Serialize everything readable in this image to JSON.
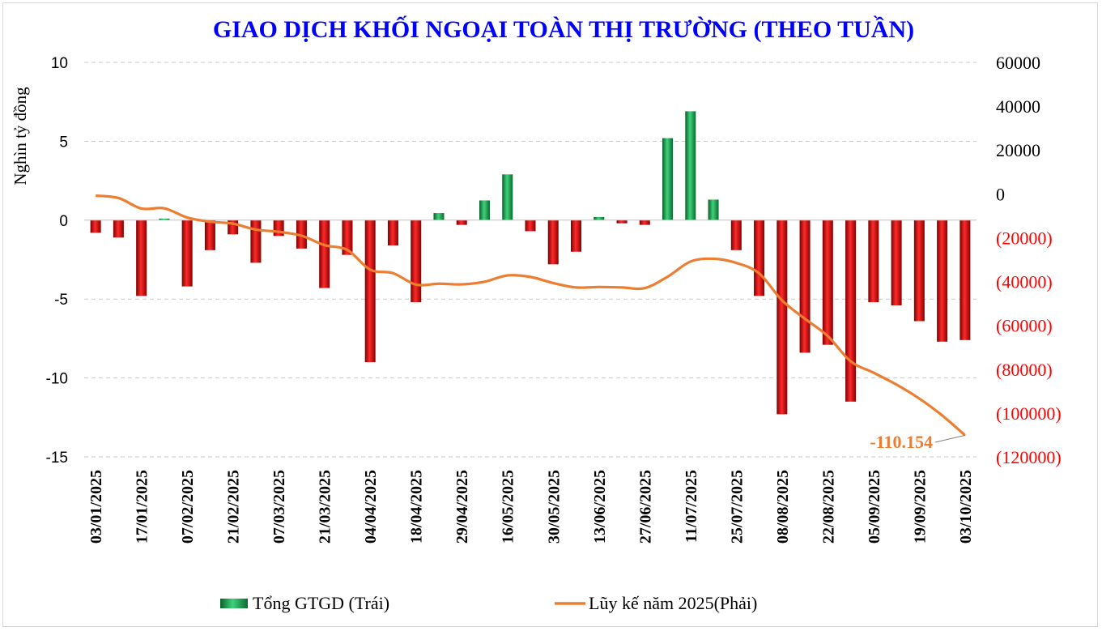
{
  "chart_data": {
    "type": "bar",
    "title": "GIAO DỊCH KHỐI NGOẠI TOÀN THỊ TRƯỜNG (THEO TUẦN)",
    "ylabel": "Nghìn tỷ đồng",
    "ylim": [
      -15,
      10
    ],
    "y_ticks": [
      "10",
      "5",
      "0",
      "-5",
      "-10",
      "-15"
    ],
    "y2lim": [
      -120000,
      60000
    ],
    "y2_ticks": [
      {
        "label": "60000",
        "negative": false
      },
      {
        "label": "40000",
        "negative": false
      },
      {
        "label": "20000",
        "negative": false
      },
      {
        "label": "0",
        "negative": false
      },
      {
        "label": "(20000)",
        "negative": true
      },
      {
        "label": "(40000)",
        "negative": true
      },
      {
        "label": "(60000)",
        "negative": true
      },
      {
        "label": "(80000)",
        "negative": true
      },
      {
        "label": "(100000)",
        "negative": true
      },
      {
        "label": "(120000)",
        "negative": true
      }
    ],
    "x_tick_labels": [
      "03/01/2025",
      "17/01/2025",
      "07/02/2025",
      "21/02/2025",
      "07/03/2025",
      "21/03/2025",
      "04/04/2025",
      "18/04/2025",
      "29/04/2025",
      "16/05/2025",
      "30/05/2025",
      "13/06/2025",
      "27/06/2025",
      "11/07/2025",
      "25/07/2025",
      "08/08/2025",
      "22/08/2025",
      "05/09/2025",
      "19/09/2025",
      "03/10/2025"
    ],
    "grid": true,
    "legend_position": "bottom",
    "series": [
      {
        "name": "Tổng GTGD (Trái)",
        "kind": "bar",
        "axis": "left",
        "values": [
          -0.8,
          -1.1,
          -4.8,
          0.1,
          -4.2,
          -1.9,
          -0.9,
          -2.7,
          -1.0,
          -1.8,
          -4.3,
          -2.2,
          -9.0,
          -1.6,
          -5.2,
          0.45,
          -0.3,
          1.25,
          2.9,
          -0.7,
          -2.8,
          -2.0,
          0.2,
          -0.2,
          -0.3,
          5.2,
          6.9,
          1.3,
          -1.9,
          -4.8,
          -12.3,
          -8.4,
          -7.9,
          -11.5,
          -5.2,
          -5.4,
          -6.4,
          -7.7,
          -7.6
        ]
      },
      {
        "name": "Lũy kế năm 2025(Phải)",
        "kind": "line",
        "axis": "right",
        "values": [
          -800,
          -1900,
          -6700,
          -6600,
          -10800,
          -12700,
          -13600,
          -16300,
          -17300,
          -19100,
          -23400,
          -25600,
          -34600,
          -36200,
          -41400,
          -41000,
          -41300,
          -40100,
          -37200,
          -37900,
          -40700,
          -42700,
          -42500,
          -42700,
          -43000,
          -37800,
          -30900,
          -29600,
          -31500,
          -36300,
          -48600,
          -57000,
          -64900,
          -76400,
          -81600,
          -87000,
          -93400,
          -101100,
          -110154
        ]
      }
    ],
    "annotation": "-110.154",
    "colors": {
      "positive": "#17a34a",
      "negative": "#cc0000",
      "line": "#ed7d31",
      "title": "#0000ff",
      "negative_tick": "#ff0000"
    }
  }
}
